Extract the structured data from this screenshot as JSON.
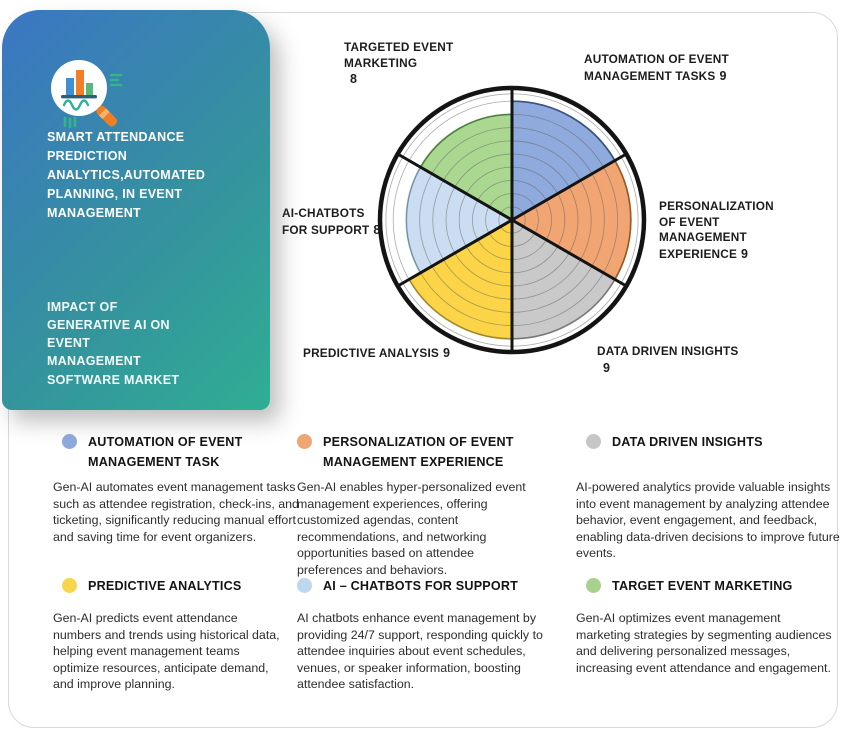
{
  "card": {
    "heading": "SMART ATTENDANCE PREDICTION ANALYTICS,AUTOMATED PLANNING, IN EVENT MANAGEMENT",
    "subheading": "IMPACT OF GENERATIVE AI ON EVENT MANAGEMENT SOFTWARE MARKET",
    "gradient": [
      "#3B76C4",
      "#35919F",
      "#2FAE93"
    ],
    "icon": "attendance-analytics-magnifier-icon"
  },
  "chart_data": {
    "type": "polar-sector",
    "title": "Impact of Generative AI on Event Management Software Market",
    "max": 10,
    "ring_step": 1,
    "sector_span_deg": 60,
    "grid": true,
    "legend_position": "bottom",
    "outline_color": "#141414",
    "grid_color": "#5a5a5a",
    "sectors": [
      {
        "label": "AUTOMATION OF EVENT MANAGEMENT TASKS",
        "value": 9,
        "fill": "#8FAADC",
        "stroke": "#2E4D8E"
      },
      {
        "label": "PERSONALIZATION OF EVENT MANAGEMENT EXPERIENCE",
        "value": 9,
        "fill": "#F0A572",
        "stroke": "#B05A1E"
      },
      {
        "label": "DATA DRIVEN INSIGHTS",
        "value": 9,
        "fill": "#C9C9C9",
        "stroke": "#8A8A8A"
      },
      {
        "label": "PREDICTIVE ANALYSIS",
        "value": 9,
        "fill": "#FBD447",
        "stroke": "#C29E25"
      },
      {
        "label": "AI-CHATBOTS FOR SUPPORT",
        "value": 8,
        "fill": "#CBDEF1",
        "stroke": "#8BB0D3"
      },
      {
        "label": "TARGETED EVENT MARKETING",
        "value": 8,
        "fill": "#ABD890",
        "stroke": "#4F8F38"
      }
    ]
  },
  "legend": {
    "items": [
      {
        "color": "#8FAADC",
        "title": "AUTOMATION OF EVENT MANAGEMENT TASK",
        "body": "Gen-AI automates event management tasks such as attendee registration, check-ins, and ticketing, significantly reducing manual effort and saving time for event organizers."
      },
      {
        "color": "#F0A572",
        "title": "PERSONALIZATION OF EVENT MANAGEMENT EXPERIENCE",
        "body": "Gen-AI enables hyper-personalized event management experiences, offering customized agendas, content recommendations, and networking opportunities based on attendee preferences and behaviors."
      },
      {
        "color": "#C6C6C6",
        "title": "DATA DRIVEN INSIGHTS",
        "body": "AI-powered analytics provide valuable insights into event management by analyzing attendee behavior, event engagement, and feedback, enabling data-driven decisions to improve future events."
      },
      {
        "color": "#F7D64B",
        "title": "PREDICTIVE ANALYTICS",
        "body": "Gen-AI predicts event attendance numbers and trends using historical data, helping event management teams optimize resources, anticipate demand, and improve planning."
      },
      {
        "color": "#BDD7EE",
        "title": "AI – CHATBOTS FOR SUPPORT",
        "body": "AI chatbots enhance event management by providing 24/7 support, responding quickly to attendee inquiries about event schedules, venues, or speaker information, boosting attendee satisfaction."
      },
      {
        "color": "#A9D18E",
        "title": "TARGET EVENT MARKETING",
        "body": "Gen-AI optimizes event management marketing strategies by segmenting audiences and delivering personalized messages, increasing event attendance and engagement."
      }
    ]
  }
}
